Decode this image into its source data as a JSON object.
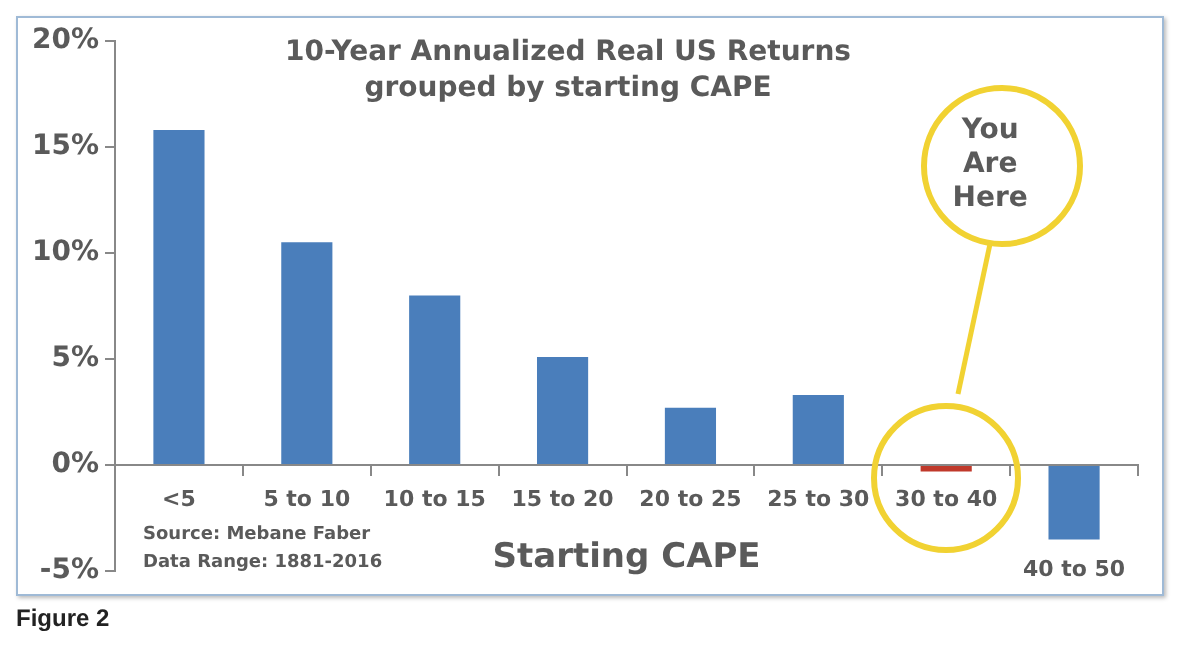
{
  "chart_data": {
    "type": "bar",
    "title": "10-Year Annualized Real US Returns grouped by starting CAPE",
    "xlabel": "Starting CAPE",
    "categories": [
      "<5",
      "5 to 10",
      "10 to 15",
      "15 to 20",
      "20 to 25",
      "25 to 30",
      "30 to 40",
      "40 to 50"
    ],
    "values": [
      15.8,
      10.5,
      8.0,
      5.1,
      2.7,
      3.3,
      -0.3,
      -3.5
    ],
    "colors": [
      "#4a7ebb",
      "#4a7ebb",
      "#4a7ebb",
      "#4a7ebb",
      "#4a7ebb",
      "#4a7ebb",
      "#c0392b",
      "#4a7ebb"
    ],
    "ylim": [
      -5,
      20
    ],
    "yticks": [
      {
        "value": -5,
        "label": "-5%"
      },
      {
        "value": 0,
        "label": "0%"
      },
      {
        "value": 5,
        "label": "5%"
      },
      {
        "value": 10,
        "label": "10%"
      },
      {
        "value": 15,
        "label": "15%"
      },
      {
        "value": 20,
        "label": "20%"
      }
    ],
    "grid": false,
    "legend": false,
    "annotations": [
      "You Are Here",
      "Source: Mebane Faber",
      "Data Range: 1881-2016",
      "Figure 2"
    ]
  }
}
